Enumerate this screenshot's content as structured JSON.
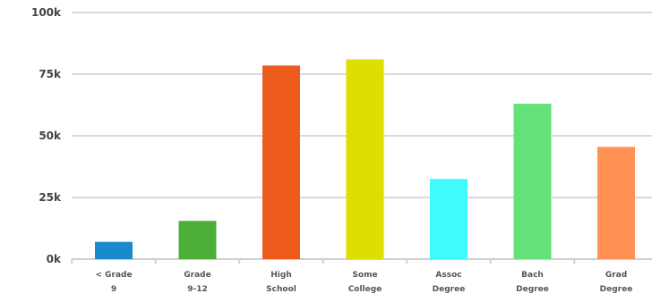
{
  "chart_data": {
    "type": "bar",
    "title": "",
    "xlabel": "",
    "ylabel": "",
    "ylim": [
      0,
      100000
    ],
    "yticks": [
      {
        "value": 0,
        "label": "0k"
      },
      {
        "value": 25000,
        "label": "25k"
      },
      {
        "value": 50000,
        "label": "50k"
      },
      {
        "value": 75000,
        "label": "75k"
      },
      {
        "value": 100000,
        "label": "100k"
      }
    ],
    "grid": true,
    "categories": [
      {
        "line1": "< Grade",
        "line2": "9"
      },
      {
        "line1": "Grade",
        "line2": "9-12"
      },
      {
        "line1": "High",
        "line2": "School"
      },
      {
        "line1": "Some",
        "line2": "College"
      },
      {
        "line1": "Assoc",
        "line2": "Degree"
      },
      {
        "line1": "Bach",
        "line2": "Degree"
      },
      {
        "line1": "Grad",
        "line2": "Degree"
      }
    ],
    "values": [
      7000,
      15500,
      78500,
      81000,
      32500,
      63000,
      45500
    ],
    "colors": [
      "#1a8acb",
      "#4caf37",
      "#ec5a1c",
      "#dede00",
      "#3ffbfb",
      "#63e27a",
      "#ff9155"
    ]
  }
}
